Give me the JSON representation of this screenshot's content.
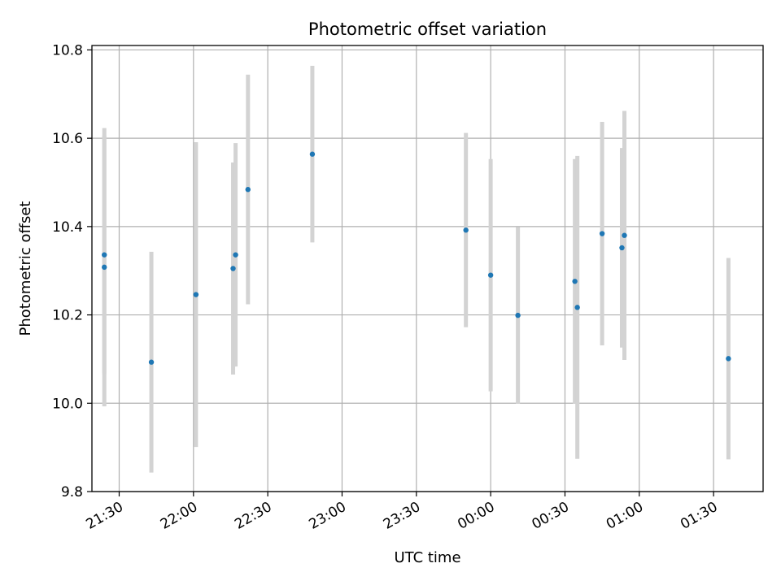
{
  "chart_data": {
    "type": "scatter",
    "title": "Photometric offset variation",
    "xlabel": "UTC time",
    "ylabel": "Photometric offset",
    "xlim": [
      "21:19",
      "01:50"
    ],
    "ylim": [
      9.8,
      10.81
    ],
    "grid": true,
    "legend": "none",
    "x_ticks": [
      "21:30",
      "22:00",
      "22:30",
      "23:00",
      "23:30",
      "00:00",
      "00:30",
      "01:00",
      "01:30"
    ],
    "y_ticks": [
      "9.8",
      "10.0",
      "10.2",
      "10.4",
      "10.6",
      "10.8"
    ],
    "series": [
      {
        "marker_color": "#1f77b4",
        "errorbar_color": "#d3d3d3",
        "points": [
          {
            "x": "21:24",
            "y": 10.336,
            "err": 0.27
          },
          {
            "x": "21:24",
            "y": 10.308,
            "err": 0.315
          },
          {
            "x": "21:43",
            "y": 10.093,
            "err": 0.25
          },
          {
            "x": "22:01",
            "y": 10.246,
            "err": 0.345
          },
          {
            "x": "22:16",
            "y": 10.305,
            "err": 0.24
          },
          {
            "x": "22:17",
            "y": 10.336,
            "err": 0.253
          },
          {
            "x": "22:22",
            "y": 10.484,
            "err": 0.26
          },
          {
            "x": "22:48",
            "y": 10.564,
            "err": 0.2
          },
          {
            "x": "23:50",
            "y": 10.392,
            "err": 0.22
          },
          {
            "x": "00:00",
            "y": 10.29,
            "err": 0.263
          },
          {
            "x": "00:11",
            "y": 10.199,
            "err": 0.2
          },
          {
            "x": "00:34",
            "y": 10.276,
            "err": 0.277
          },
          {
            "x": "00:35",
            "y": 10.217,
            "err": 0.343
          },
          {
            "x": "00:45",
            "y": 10.384,
            "err": 0.253
          },
          {
            "x": "00:53",
            "y": 10.352,
            "err": 0.226
          },
          {
            "x": "00:54",
            "y": 10.38,
            "err": 0.282
          },
          {
            "x": "01:36",
            "y": 10.101,
            "err": 0.228
          }
        ]
      }
    ]
  }
}
